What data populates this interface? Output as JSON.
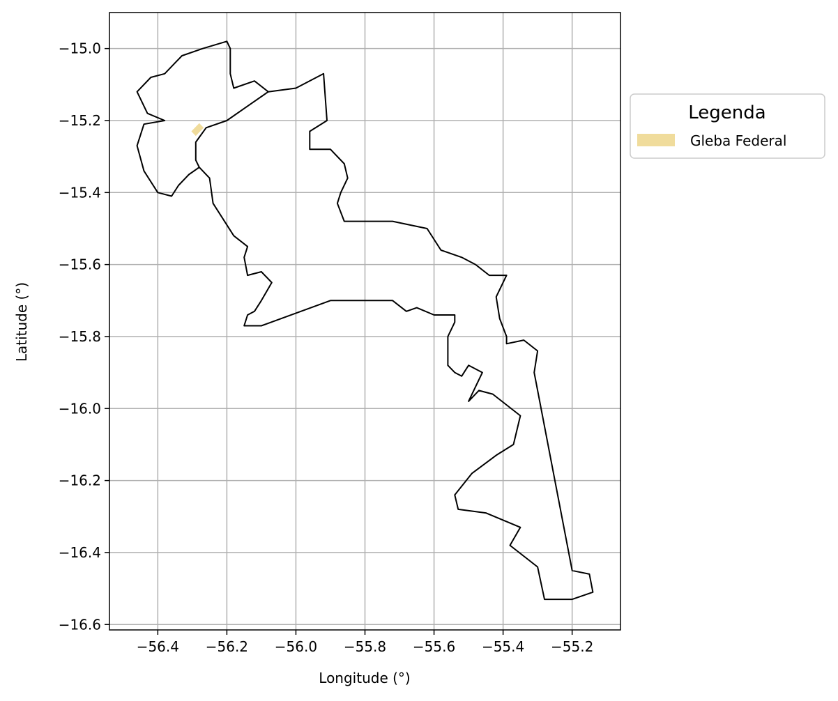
{
  "chart_data": {
    "type": "map",
    "xlabel": "Longitude (°)",
    "ylabel": "Latitude (°)",
    "xlim": [
      -56.54,
      -55.06
    ],
    "ylim": [
      -16.615,
      -14.9
    ],
    "grid": true,
    "xticks": [
      -56.4,
      -56.2,
      -56.0,
      -55.8,
      -55.6,
      -55.4,
      -55.2
    ],
    "yticks": [
      -15.0,
      -15.2,
      -15.4,
      -15.6,
      -15.8,
      -16.0,
      -16.2,
      -16.4,
      -16.6
    ],
    "xtick_labels": [
      "−56.4",
      "−56.2",
      "−56.0",
      "−55.8",
      "−55.6",
      "−55.4",
      "−55.2"
    ],
    "ytick_labels": [
      "−15.0",
      "−15.2",
      "−15.4",
      "−15.6",
      "−15.8",
      "−16.0",
      "−16.2",
      "−16.4",
      "−16.6"
    ],
    "legend": {
      "title": "Legenda",
      "placement": "outside-right",
      "entries": [
        {
          "label": "Gleba Federal",
          "color": "#f0dc9c"
        }
      ]
    },
    "boundary": {
      "color": "#000000",
      "coordinates": [
        [
          -56.18,
          -15.11
        ],
        [
          -56.12,
          -15.09
        ],
        [
          -56.08,
          -15.12
        ],
        [
          -56.0,
          -15.11
        ],
        [
          -55.92,
          -15.07
        ],
        [
          -55.91,
          -15.2
        ],
        [
          -55.96,
          -15.23
        ],
        [
          -55.96,
          -15.28
        ],
        [
          -55.9,
          -15.28
        ],
        [
          -55.86,
          -15.32
        ],
        [
          -55.85,
          -15.36
        ],
        [
          -55.87,
          -15.4
        ],
        [
          -55.88,
          -15.43
        ],
        [
          -55.86,
          -15.48
        ],
        [
          -55.8,
          -15.48
        ],
        [
          -55.72,
          -15.48
        ],
        [
          -55.62,
          -15.5
        ],
        [
          -55.58,
          -15.56
        ],
        [
          -55.52,
          -15.58
        ],
        [
          -55.48,
          -15.6
        ],
        [
          -55.44,
          -15.63
        ],
        [
          -55.39,
          -15.63
        ],
        [
          -55.42,
          -15.69
        ],
        [
          -55.41,
          -15.75
        ],
        [
          -55.39,
          -15.8
        ],
        [
          -55.39,
          -15.82
        ],
        [
          -55.34,
          -15.81
        ],
        [
          -55.3,
          -15.84
        ],
        [
          -55.31,
          -15.9
        ],
        [
          -55.2,
          -16.45
        ],
        [
          -55.15,
          -16.46
        ],
        [
          -55.14,
          -16.51
        ],
        [
          -55.2,
          -16.53
        ],
        [
          -55.28,
          -16.53
        ],
        [
          -55.3,
          -16.44
        ],
        [
          -55.34,
          -16.41
        ],
        [
          -55.38,
          -16.38
        ],
        [
          -55.35,
          -16.33
        ],
        [
          -55.45,
          -16.29
        ],
        [
          -55.53,
          -16.28
        ],
        [
          -55.54,
          -16.24
        ],
        [
          -55.49,
          -16.18
        ],
        [
          -55.42,
          -16.13
        ],
        [
          -55.37,
          -16.1
        ],
        [
          -55.35,
          -16.02
        ],
        [
          -55.39,
          -15.99
        ],
        [
          -55.43,
          -15.96
        ],
        [
          -55.47,
          -15.95
        ],
        [
          -55.5,
          -15.98
        ],
        [
          -55.46,
          -15.9
        ],
        [
          -55.5,
          -15.88
        ],
        [
          -55.52,
          -15.91
        ],
        [
          -55.54,
          -15.9
        ],
        [
          -55.56,
          -15.88
        ],
        [
          -55.56,
          -15.8
        ],
        [
          -55.54,
          -15.76
        ],
        [
          -55.54,
          -15.74
        ],
        [
          -55.6,
          -15.74
        ],
        [
          -55.65,
          -15.72
        ],
        [
          -55.68,
          -15.73
        ],
        [
          -55.72,
          -15.7
        ],
        [
          -55.9,
          -15.7
        ],
        [
          -56.1,
          -15.77
        ],
        [
          -56.15,
          -15.77
        ],
        [
          -56.14,
          -15.74
        ],
        [
          -56.12,
          -15.73
        ],
        [
          -56.1,
          -15.7
        ],
        [
          -56.07,
          -15.65
        ],
        [
          -56.1,
          -15.62
        ],
        [
          -56.14,
          -15.63
        ],
        [
          -56.15,
          -15.58
        ],
        [
          -56.14,
          -15.55
        ],
        [
          -56.18,
          -15.52
        ],
        [
          -56.24,
          -15.43
        ],
        [
          -56.25,
          -15.36
        ],
        [
          -56.28,
          -15.33
        ],
        [
          -56.31,
          -15.35
        ],
        [
          -56.34,
          -15.38
        ],
        [
          -56.36,
          -15.41
        ],
        [
          -56.4,
          -15.4
        ],
        [
          -56.44,
          -15.34
        ],
        [
          -56.46,
          -15.27
        ],
        [
          -56.44,
          -15.21
        ],
        [
          -56.38,
          -15.2
        ],
        [
          -56.43,
          -15.18
        ],
        [
          -56.46,
          -15.12
        ],
        [
          -56.42,
          -15.08
        ],
        [
          -56.38,
          -15.07
        ],
        [
          -56.33,
          -15.02
        ],
        [
          -56.27,
          -15.0
        ],
        [
          -56.2,
          -14.98
        ],
        [
          -56.19,
          -15.0
        ],
        [
          -56.19,
          -15.07
        ],
        [
          -56.18,
          -15.11
        ]
      ],
      "inner_line": [
        [
          -56.08,
          -15.12
        ],
        [
          -56.14,
          -15.16
        ],
        [
          -56.2,
          -15.2
        ],
        [
          -56.26,
          -15.22
        ],
        [
          -56.29,
          -15.26
        ],
        [
          -56.29,
          -15.31
        ],
        [
          -56.28,
          -15.33
        ]
      ]
    },
    "gleba_federal": {
      "coordinates": [
        [
          -56.3,
          -15.23
        ],
        [
          -56.28,
          -15.21
        ],
        [
          -56.27,
          -15.22
        ],
        [
          -56.29,
          -15.24
        ],
        [
          -56.3,
          -15.23
        ]
      ]
    }
  }
}
